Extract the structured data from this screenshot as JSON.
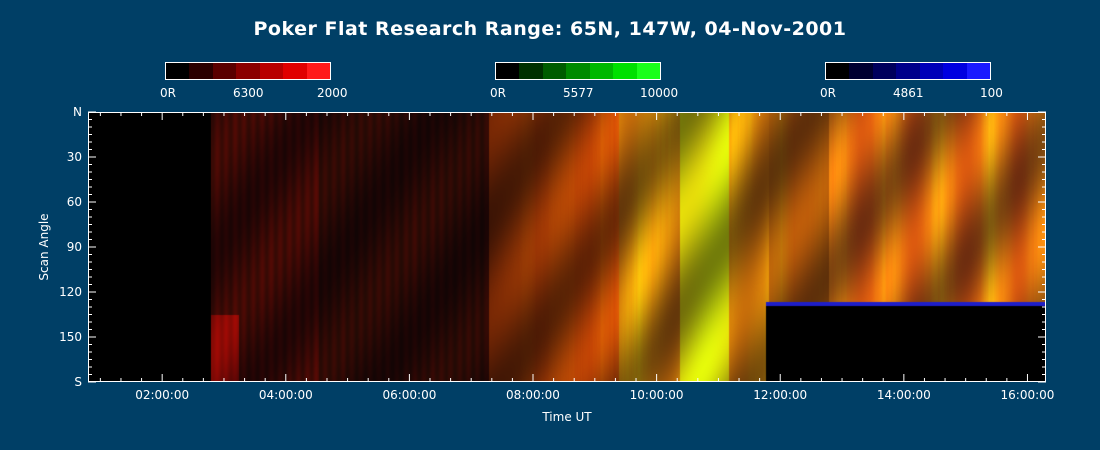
{
  "chart_data": {
    "type": "heatmap",
    "title": "Poker Flat Research Range: 65N, 147W, 04-Nov-2001",
    "xlabel": "Time UT",
    "ylabel": "Scan Angle",
    "xlim": [
      "00:48:00",
      "16:18:00"
    ],
    "ylim": [
      "N",
      "S"
    ],
    "x_ticks": [
      "02:00:00",
      "04:00:00",
      "06:00:00",
      "08:00:00",
      "10:00:00",
      "12:00:00",
      "14:00:00",
      "16:00:00"
    ],
    "y_ticks": [
      "N",
      "30",
      "60",
      "90",
      "120",
      "150",
      "S"
    ],
    "colorbars": [
      {
        "name": "6300",
        "min_label": "0R",
        "mid_label": "6300",
        "max_label": "2000",
        "colors": [
          "#000000",
          "#2a0000",
          "#5a0000",
          "#8a0000",
          "#b80000",
          "#e00000",
          "#ff1a1a"
        ]
      },
      {
        "name": "5577",
        "min_label": "0R",
        "mid_label": "5577",
        "max_label": "10000",
        "colors": [
          "#000000",
          "#003000",
          "#005c00",
          "#008a00",
          "#00b800",
          "#00e000",
          "#1aff1a"
        ]
      },
      {
        "name": "4861",
        "min_label": "0R",
        "mid_label": "4861",
        "max_label": "100",
        "colors": [
          "#000000",
          "#000030",
          "#00005c",
          "#00008a",
          "#0000b8",
          "#0000e0",
          "#1a1aff"
        ]
      }
    ]
  }
}
